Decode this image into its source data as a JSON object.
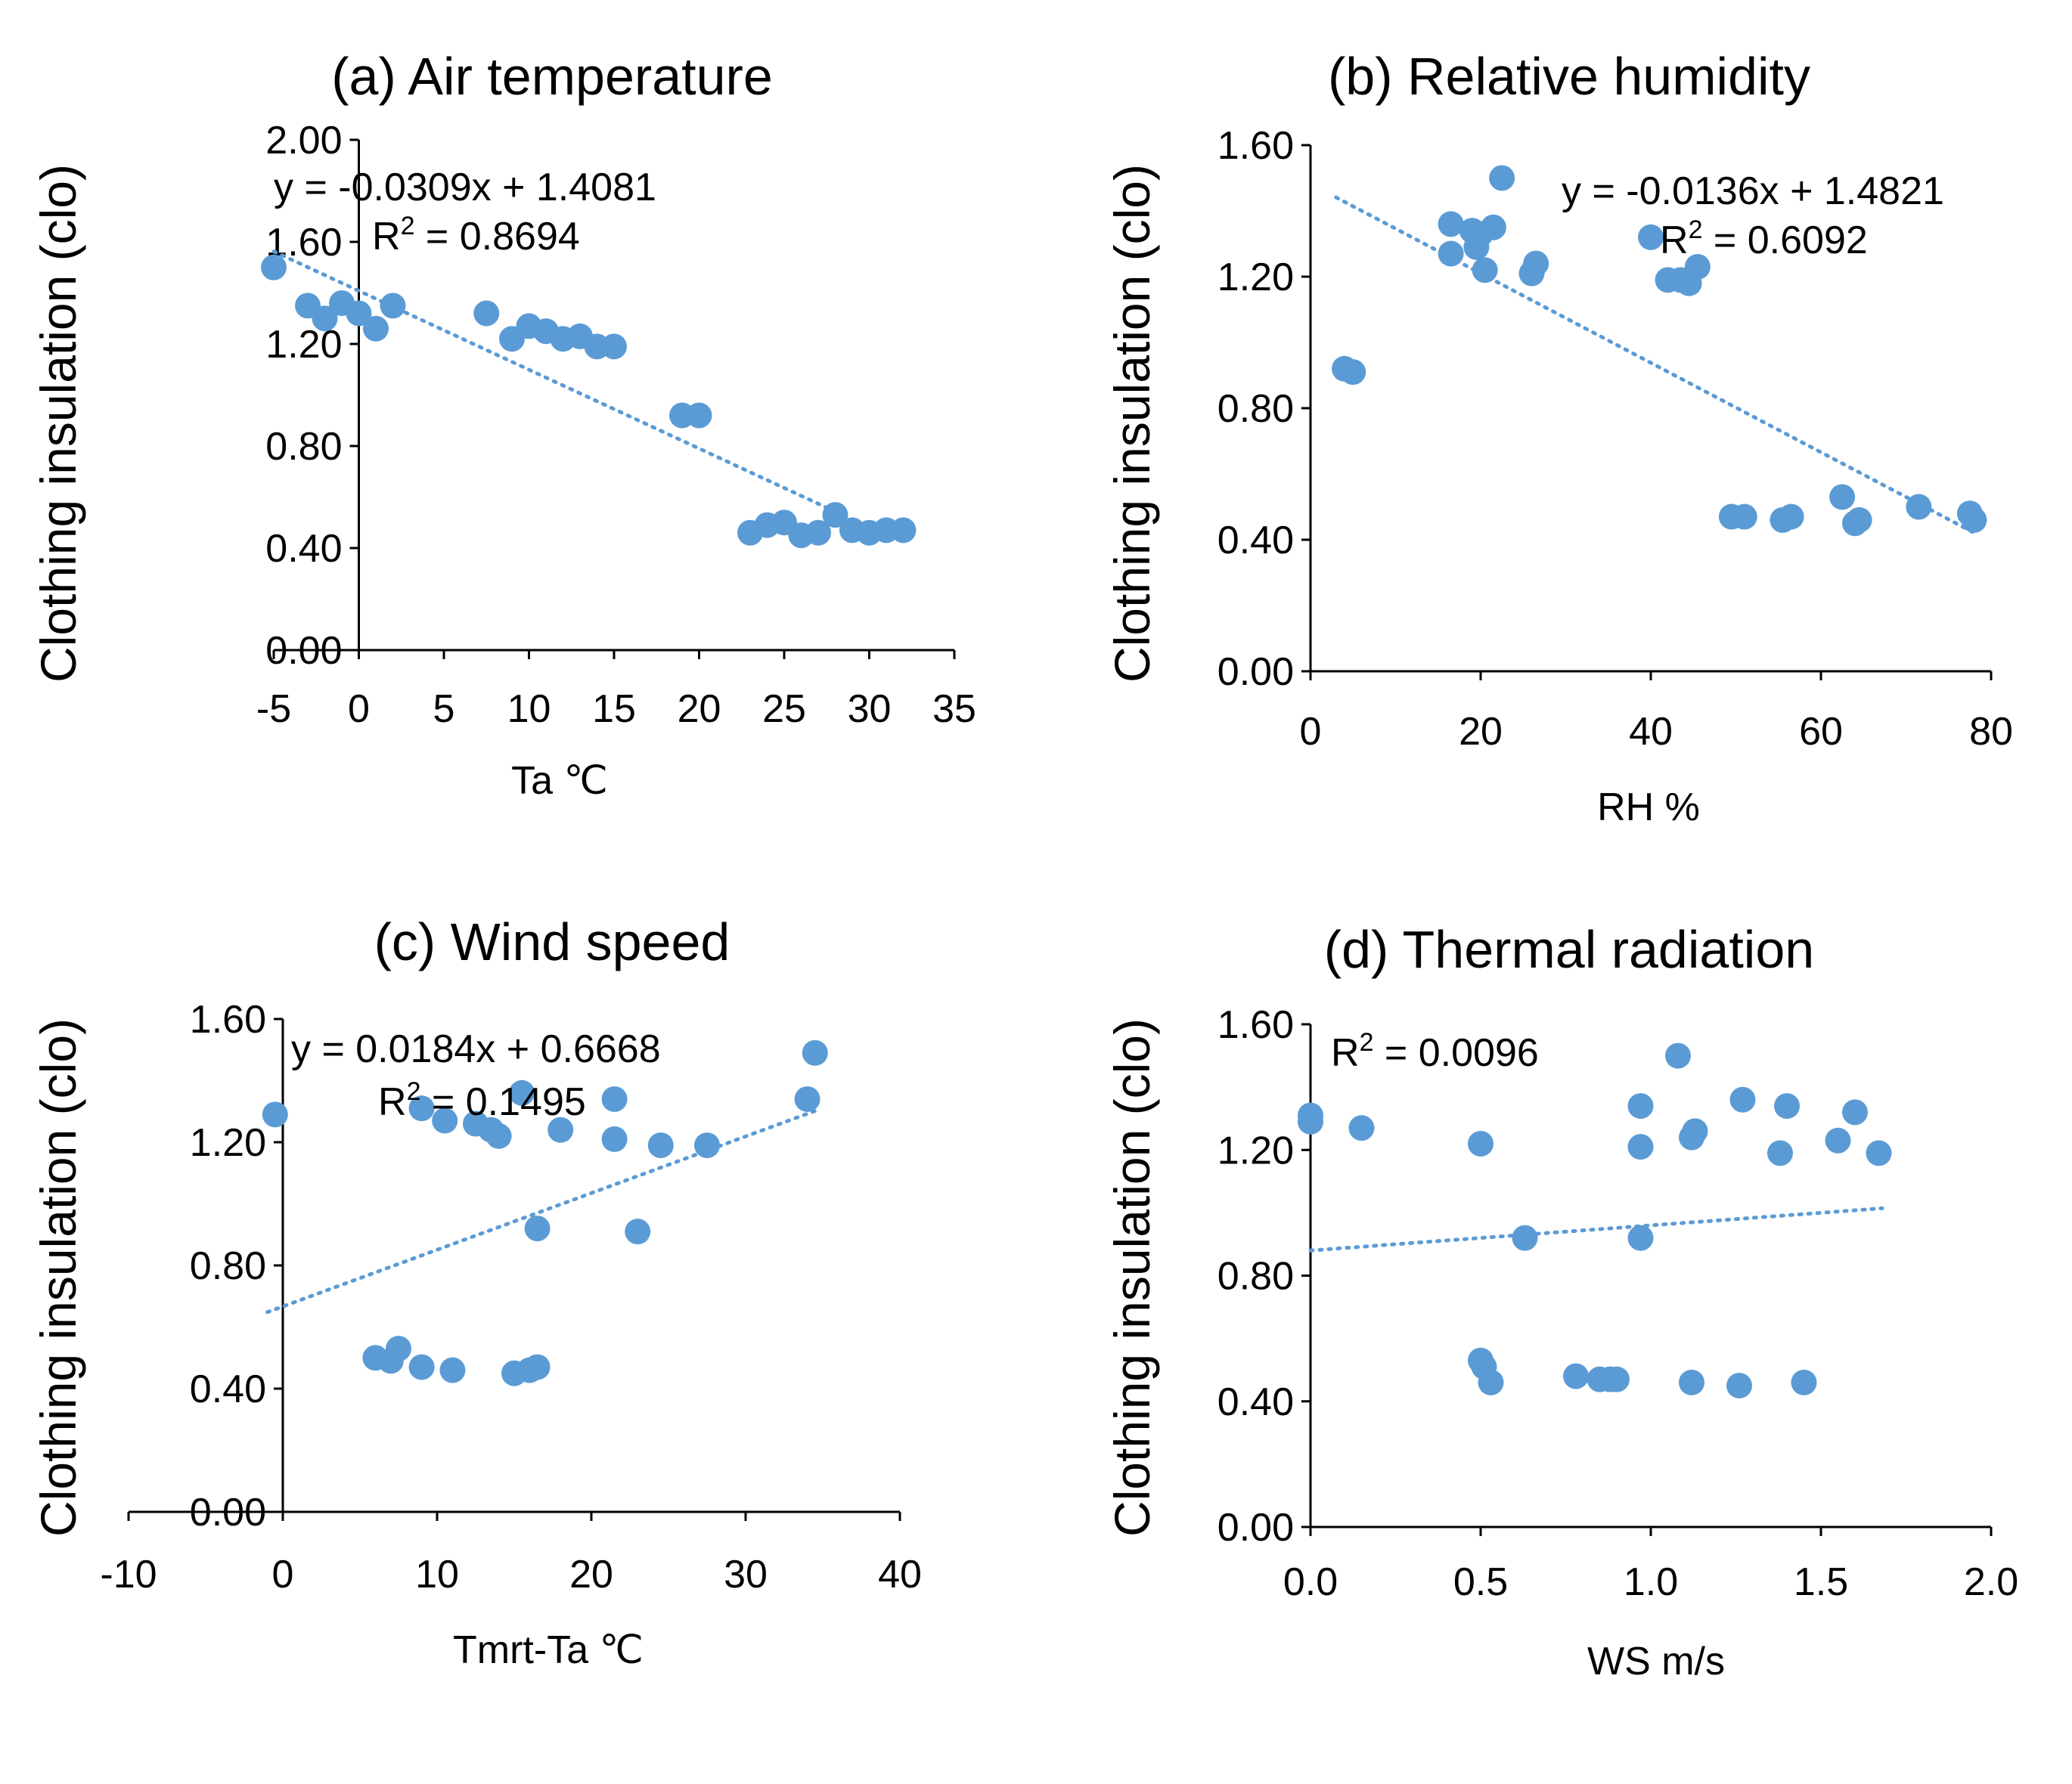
{
  "colors": {
    "points": "#5b9bd5",
    "trendline": "#5b9bd5",
    "axis": "#000000"
  },
  "chart_data": [
    {
      "type": "scatter",
      "title": "(a) Air temperature",
      "xlabel": "Ta ℃",
      "ylabel": "Clothing insulation (clo)",
      "xlim": [
        -5,
        35
      ],
      "ylim": [
        0,
        2.0
      ],
      "xticks": [
        "-5",
        "0",
        "5",
        "10",
        "15",
        "20",
        "25",
        "30",
        "35"
      ],
      "yticks": [
        "0.00",
        "0.40",
        "0.80",
        "1.20",
        "1.60",
        "2.00"
      ],
      "equation": "y = -0.0309x + 1.4081",
      "r2_prefix": "R",
      "r2_sup": "2",
      "r2_value": " = 0.8694",
      "trend": {
        "slope": -0.0309,
        "intercept": 1.4081,
        "x_range": [
          -5,
          28
        ]
      },
      "points": [
        [
          -5.0,
          1.5
        ],
        [
          -3.0,
          1.35
        ],
        [
          -2.0,
          1.3
        ],
        [
          -1.0,
          1.36
        ],
        [
          0.0,
          1.32
        ],
        [
          1.0,
          1.26
        ],
        [
          2.0,
          1.35
        ],
        [
          7.5,
          1.32
        ],
        [
          9.0,
          1.22
        ],
        [
          10.0,
          1.27
        ],
        [
          11.0,
          1.25
        ],
        [
          12.0,
          1.22
        ],
        [
          13.0,
          1.23
        ],
        [
          14.0,
          1.19
        ],
        [
          15.0,
          1.19
        ],
        [
          19.0,
          0.92
        ],
        [
          20.0,
          0.92
        ],
        [
          23.0,
          0.46
        ],
        [
          24.0,
          0.49
        ],
        [
          25.0,
          0.5
        ],
        [
          26.0,
          0.45
        ],
        [
          27.0,
          0.46
        ],
        [
          28.0,
          0.53
        ],
        [
          29.0,
          0.47
        ],
        [
          30.0,
          0.46
        ],
        [
          31.0,
          0.47
        ],
        [
          32.0,
          0.47
        ]
      ]
    },
    {
      "type": "scatter",
      "title": "(b) Relative humidity",
      "xlabel": "RH %",
      "ylabel": "Clothing insulation (clo)",
      "xlim": [
        0,
        80
      ],
      "ylim": [
        0,
        1.6
      ],
      "xticks": [
        "0",
        "20",
        "40",
        "60",
        "80"
      ],
      "yticks": [
        "0.00",
        "0.40",
        "0.80",
        "1.20",
        "1.60"
      ],
      "equation": "y = -0.0136x + 1.4821",
      "r2_prefix": "R",
      "r2_sup": "2",
      "r2_value": " = 0.6092",
      "trend": {
        "slope": -0.0136,
        "intercept": 1.4821,
        "x_range": [
          3,
          78
        ]
      },
      "points": [
        [
          4.0,
          0.92
        ],
        [
          5.0,
          0.91
        ],
        [
          16.5,
          1.36
        ],
        [
          16.5,
          1.27
        ],
        [
          19.0,
          1.34
        ],
        [
          19.5,
          1.29
        ],
        [
          20.0,
          1.33
        ],
        [
          20.5,
          1.22
        ],
        [
          21.5,
          1.35
        ],
        [
          22.5,
          1.5
        ],
        [
          26.0,
          1.21
        ],
        [
          26.5,
          1.24
        ],
        [
          40.0,
          1.32
        ],
        [
          42.0,
          1.19
        ],
        [
          43.5,
          1.19
        ],
        [
          44.5,
          1.18
        ],
        [
          45.5,
          1.23
        ],
        [
          49.5,
          0.47
        ],
        [
          51.0,
          0.47
        ],
        [
          55.5,
          0.46
        ],
        [
          56.5,
          0.47
        ],
        [
          62.5,
          0.53
        ],
        [
          64.0,
          0.45
        ],
        [
          64.5,
          0.46
        ],
        [
          71.5,
          0.5
        ],
        [
          77.5,
          0.48
        ],
        [
          78.0,
          0.46
        ]
      ]
    },
    {
      "type": "scatter",
      "title": "(c) Wind speed",
      "xlabel": "Tmrt-Ta ℃",
      "ylabel": "Clothing insulation (clo)",
      "xlim": [
        -10,
        40
      ],
      "ylim": [
        0,
        1.6
      ],
      "xticks": [
        "-10",
        "0",
        "10",
        "20",
        "30",
        "40"
      ],
      "yticks": [
        "0.00",
        "0.40",
        "0.80",
        "1.20",
        "1.60"
      ],
      "equation": "y = 0.0184x + 0.6668",
      "r2_prefix": "R",
      "r2_sup": "2",
      "r2_value": " = 0.1495",
      "trend": {
        "slope": 0.0184,
        "intercept": 0.6668,
        "x_range": [
          -1,
          34.5
        ]
      },
      "points": [
        [
          -0.5,
          1.29
        ],
        [
          9.0,
          1.31
        ],
        [
          10.5,
          1.27
        ],
        [
          12.5,
          1.26
        ],
        [
          13.5,
          1.24
        ],
        [
          14.0,
          1.22
        ],
        [
          15.5,
          1.36
        ],
        [
          18.0,
          1.24
        ],
        [
          21.5,
          1.34
        ],
        [
          21.5,
          1.21
        ],
        [
          24.5,
          1.19
        ],
        [
          27.5,
          1.19
        ],
        [
          34.0,
          1.34
        ],
        [
          34.5,
          1.49
        ],
        [
          16.5,
          0.92
        ],
        [
          23.0,
          0.91
        ],
        [
          6.0,
          0.5
        ],
        [
          7.0,
          0.49
        ],
        [
          7.5,
          0.53
        ],
        [
          9.0,
          0.47
        ],
        [
          11.0,
          0.46
        ],
        [
          15.0,
          0.45
        ],
        [
          16.0,
          0.46
        ],
        [
          16.5,
          0.47
        ]
      ]
    },
    {
      "type": "scatter",
      "title": "(d) Thermal radiation",
      "xlabel": "WS m/s",
      "ylabel": "Clothing insulation (clo)",
      "xlim": [
        0,
        2.0
      ],
      "ylim": [
        0,
        1.6
      ],
      "xticks": [
        "0.0",
        "0.5",
        "1.0",
        "1.5",
        "2.0"
      ],
      "yticks": [
        "0.00",
        "0.40",
        "0.80",
        "1.20",
        "1.60"
      ],
      "equation": "",
      "r2_prefix": "R",
      "r2_sup": "2",
      "r2_value": " = 0.0096",
      "trend": {
        "slope": 0.08,
        "intercept": 0.88,
        "x_range": [
          0,
          1.68
        ]
      },
      "points": [
        [
          0.0,
          1.31
        ],
        [
          0.0,
          1.29
        ],
        [
          0.15,
          1.27
        ],
        [
          0.5,
          1.22
        ],
        [
          0.63,
          0.92
        ],
        [
          0.5,
          0.53
        ],
        [
          0.51,
          0.51
        ],
        [
          0.53,
          0.46
        ],
        [
          0.78,
          0.48
        ],
        [
          0.85,
          0.47
        ],
        [
          0.88,
          0.47
        ],
        [
          0.9,
          0.47
        ],
        [
          0.97,
          1.34
        ],
        [
          0.97,
          1.21
        ],
        [
          0.97,
          0.92
        ],
        [
          1.08,
          1.5
        ],
        [
          1.12,
          1.24
        ],
        [
          1.13,
          1.26
        ],
        [
          1.12,
          0.46
        ],
        [
          1.27,
          1.36
        ],
        [
          1.26,
          0.45
        ],
        [
          1.38,
          1.19
        ],
        [
          1.4,
          1.34
        ],
        [
          1.45,
          0.46
        ],
        [
          1.55,
          1.23
        ],
        [
          1.6,
          1.32
        ],
        [
          1.67,
          1.19
        ]
      ]
    }
  ]
}
